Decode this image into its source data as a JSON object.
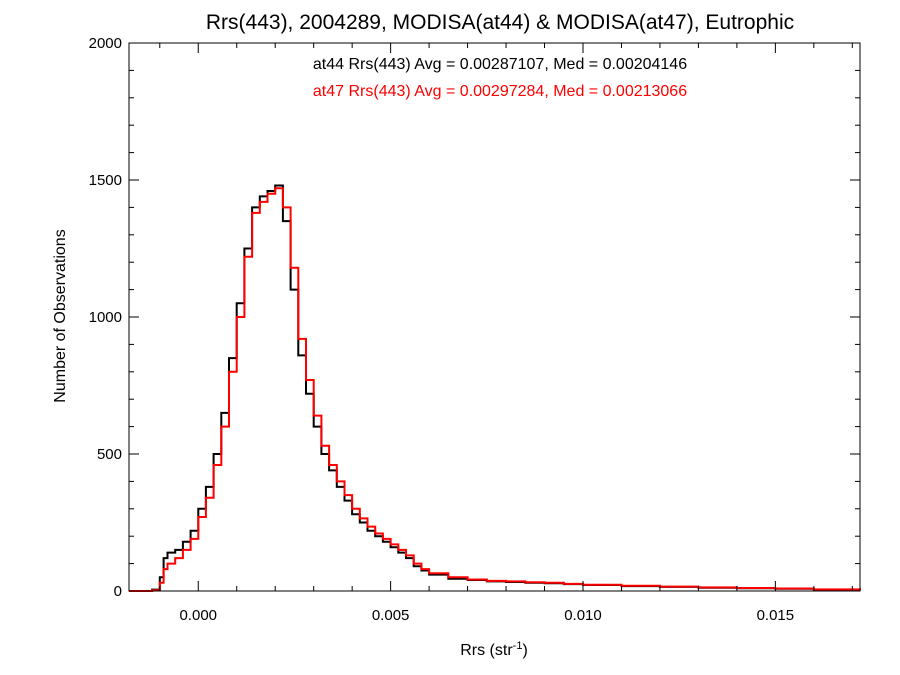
{
  "chart_data": {
    "type": "histogram-step",
    "title": "Rrs(443), 2004289, MODISA(at44) & MODISA(at47), Eutrophic",
    "xlabel": {
      "base": "Rrs (str",
      "superscript": "-1",
      "tail": ")"
    },
    "ylabel": "Number of Observations",
    "xlim": [
      -0.0018,
      0.0172
    ],
    "ylim": [
      0,
      2000
    ],
    "x_ticks": [
      0.0,
      0.005,
      0.01,
      0.015
    ],
    "x_tick_labels": [
      "0.000",
      "0.005",
      "0.010",
      "0.015"
    ],
    "y_ticks": [
      0,
      500,
      1000,
      1500,
      2000
    ],
    "y_tick_labels": [
      "0",
      "500",
      "1000",
      "1500",
      "2000"
    ],
    "grid": false,
    "annotations": [
      {
        "text": "at44 Rrs(443) Avg = 0.00287107, Med = 0.00204146",
        "color": "#000000"
      },
      {
        "text": "at47 Rrs(443) Avg = 0.00297284, Med = 0.00213066",
        "color": "#ff0000"
      }
    ],
    "series": [
      {
        "color": "#000000",
        "x": [
          -0.0018,
          -0.0012,
          -0.001,
          -0.0009,
          -0.0008,
          -0.0006,
          -0.0004,
          -0.0002,
          0.0,
          0.0002,
          0.0004,
          0.0006,
          0.0008,
          0.001,
          0.0012,
          0.0014,
          0.0016,
          0.0018,
          0.002,
          0.0022,
          0.0024,
          0.0026,
          0.0028,
          0.003,
          0.0032,
          0.0034,
          0.0036,
          0.0038,
          0.004,
          0.0042,
          0.0044,
          0.0046,
          0.0048,
          0.005,
          0.0052,
          0.0054,
          0.0056,
          0.0058,
          0.006,
          0.0065,
          0.007,
          0.0075,
          0.008,
          0.0085,
          0.009,
          0.0095,
          0.01,
          0.011,
          0.012,
          0.013,
          0.014,
          0.015,
          0.016,
          0.0172
        ],
        "y": [
          0,
          5,
          50,
          120,
          140,
          150,
          180,
          220,
          300,
          380,
          500,
          650,
          850,
          1050,
          1250,
          1400,
          1440,
          1460,
          1480,
          1350,
          1100,
          860,
          720,
          600,
          500,
          440,
          380,
          330,
          280,
          250,
          220,
          200,
          180,
          160,
          140,
          120,
          90,
          75,
          60,
          45,
          40,
          35,
          33,
          30,
          28,
          25,
          22,
          18,
          15,
          12,
          10,
          8,
          5,
          3
        ]
      },
      {
        "color": "#ff0000",
        "x": [
          -0.0018,
          -0.0012,
          -0.001,
          -0.0009,
          -0.0008,
          -0.0006,
          -0.0004,
          -0.0002,
          0.0,
          0.0002,
          0.0004,
          0.0006,
          0.0008,
          0.001,
          0.0012,
          0.0014,
          0.0016,
          0.0018,
          0.002,
          0.0022,
          0.0024,
          0.0026,
          0.0028,
          0.003,
          0.0032,
          0.0034,
          0.0036,
          0.0038,
          0.004,
          0.0042,
          0.0044,
          0.0046,
          0.0048,
          0.005,
          0.0052,
          0.0054,
          0.0056,
          0.0058,
          0.006,
          0.0065,
          0.007,
          0.0075,
          0.008,
          0.0085,
          0.009,
          0.0095,
          0.01,
          0.011,
          0.012,
          0.013,
          0.014,
          0.015,
          0.016,
          0.0172
        ],
        "y": [
          0,
          3,
          30,
          80,
          100,
          120,
          150,
          190,
          270,
          340,
          460,
          600,
          800,
          1000,
          1220,
          1380,
          1420,
          1450,
          1470,
          1400,
          1180,
          920,
          770,
          640,
          530,
          460,
          400,
          350,
          300,
          265,
          235,
          210,
          190,
          170,
          150,
          130,
          100,
          80,
          65,
          50,
          42,
          37,
          35,
          32,
          30,
          26,
          23,
          19,
          16,
          13,
          11,
          9,
          6,
          3
        ]
      }
    ]
  }
}
